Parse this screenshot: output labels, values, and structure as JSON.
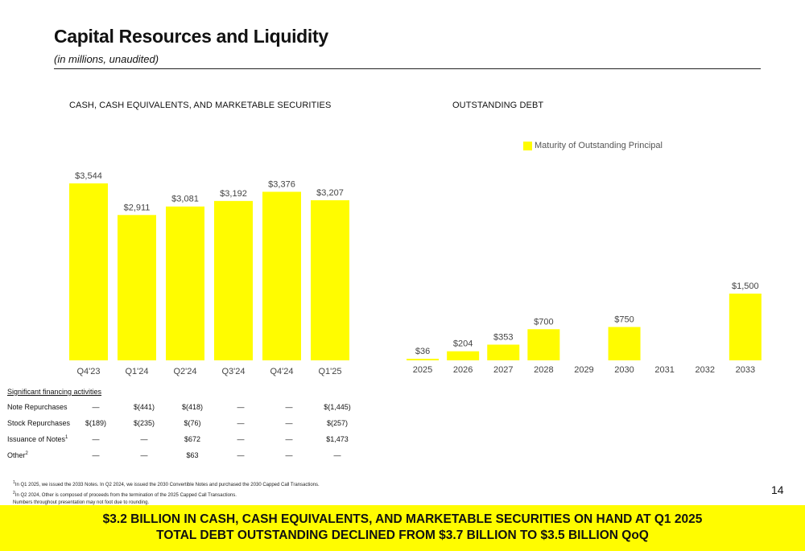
{
  "header": {
    "title": "Capital Resources and Liquidity",
    "subtitle": "(in millions, unaudited)"
  },
  "colors": {
    "bar": "#fffc00",
    "banner": "#fffc00",
    "text": "#111111",
    "axis_label": "#444444"
  },
  "chart_data": [
    {
      "type": "bar",
      "title": "CASH, CASH EQUIVALENTS, AND MARKETABLE SECURITIES",
      "categories": [
        "Q4'23",
        "Q1'24",
        "Q2'24",
        "Q3'24",
        "Q4'24",
        "Q1'25"
      ],
      "values": [
        3544,
        2911,
        3081,
        3192,
        3376,
        3207
      ],
      "data_labels": [
        "$3,544",
        "$2,911",
        "$3,081",
        "$3,192",
        "$3,376",
        "$3,207"
      ],
      "ylim": [
        0,
        3544
      ],
      "grid": false
    },
    {
      "type": "bar",
      "title": "OUTSTANDING DEBT",
      "legend": {
        "label": "Maturity of Outstanding Principal",
        "position": "top-right"
      },
      "categories": [
        "2025",
        "2026",
        "2027",
        "2028",
        "2029",
        "2030",
        "2031",
        "2032",
        "2033"
      ],
      "values": [
        36,
        204,
        353,
        700,
        0,
        750,
        0,
        0,
        1500
      ],
      "data_labels": [
        "$36",
        "$204",
        "$353",
        "$700",
        "",
        "$750",
        "",
        "",
        "$1,500"
      ],
      "ylim": [
        0,
        1500
      ],
      "grid": false
    }
  ],
  "financing": {
    "title": "Significant financing activities",
    "rows": [
      {
        "label": "Note Repurchases",
        "sup": "",
        "values": [
          "—",
          "$(441)",
          "$(418)",
          "—",
          "—",
          "$(1,445)"
        ]
      },
      {
        "label": "Stock Repurchases",
        "sup": "",
        "values": [
          "$(189)",
          "$(235)",
          "$(76)",
          "—",
          "—",
          "$(257)"
        ]
      },
      {
        "label": "Issuance of Notes",
        "sup": "1",
        "values": [
          "—",
          "—",
          "$672",
          "—",
          "—",
          "$1,473"
        ]
      },
      {
        "label": "Other",
        "sup": "2",
        "values": [
          "—",
          "—",
          "$63",
          "—",
          "—",
          "—"
        ]
      }
    ]
  },
  "footnotes": [
    {
      "sup": "1",
      "text": "In Q1 2025, we issued the 2033 Notes. In Q2 2024, we issued the 2030 Convertible Notes and purchased the 2030 Capped Call Transactions."
    },
    {
      "sup": "2",
      "text": "In Q2 2024, Other is composed of proceeds from the termination of the 2025 Capped Call Transactions."
    },
    {
      "sup": "",
      "text": "Numbers throughout presentation may not foot due to rounding."
    }
  ],
  "page_number": "14",
  "banner": {
    "line1": "$3.2 BILLION IN CASH, CASH EQUIVALENTS, AND MARKETABLE SECURITIES ON HAND AT Q1 2025",
    "line2": "TOTAL DEBT OUTSTANDING DECLINED FROM $3.7 BILLION TO $3.5 BILLION QoQ"
  }
}
